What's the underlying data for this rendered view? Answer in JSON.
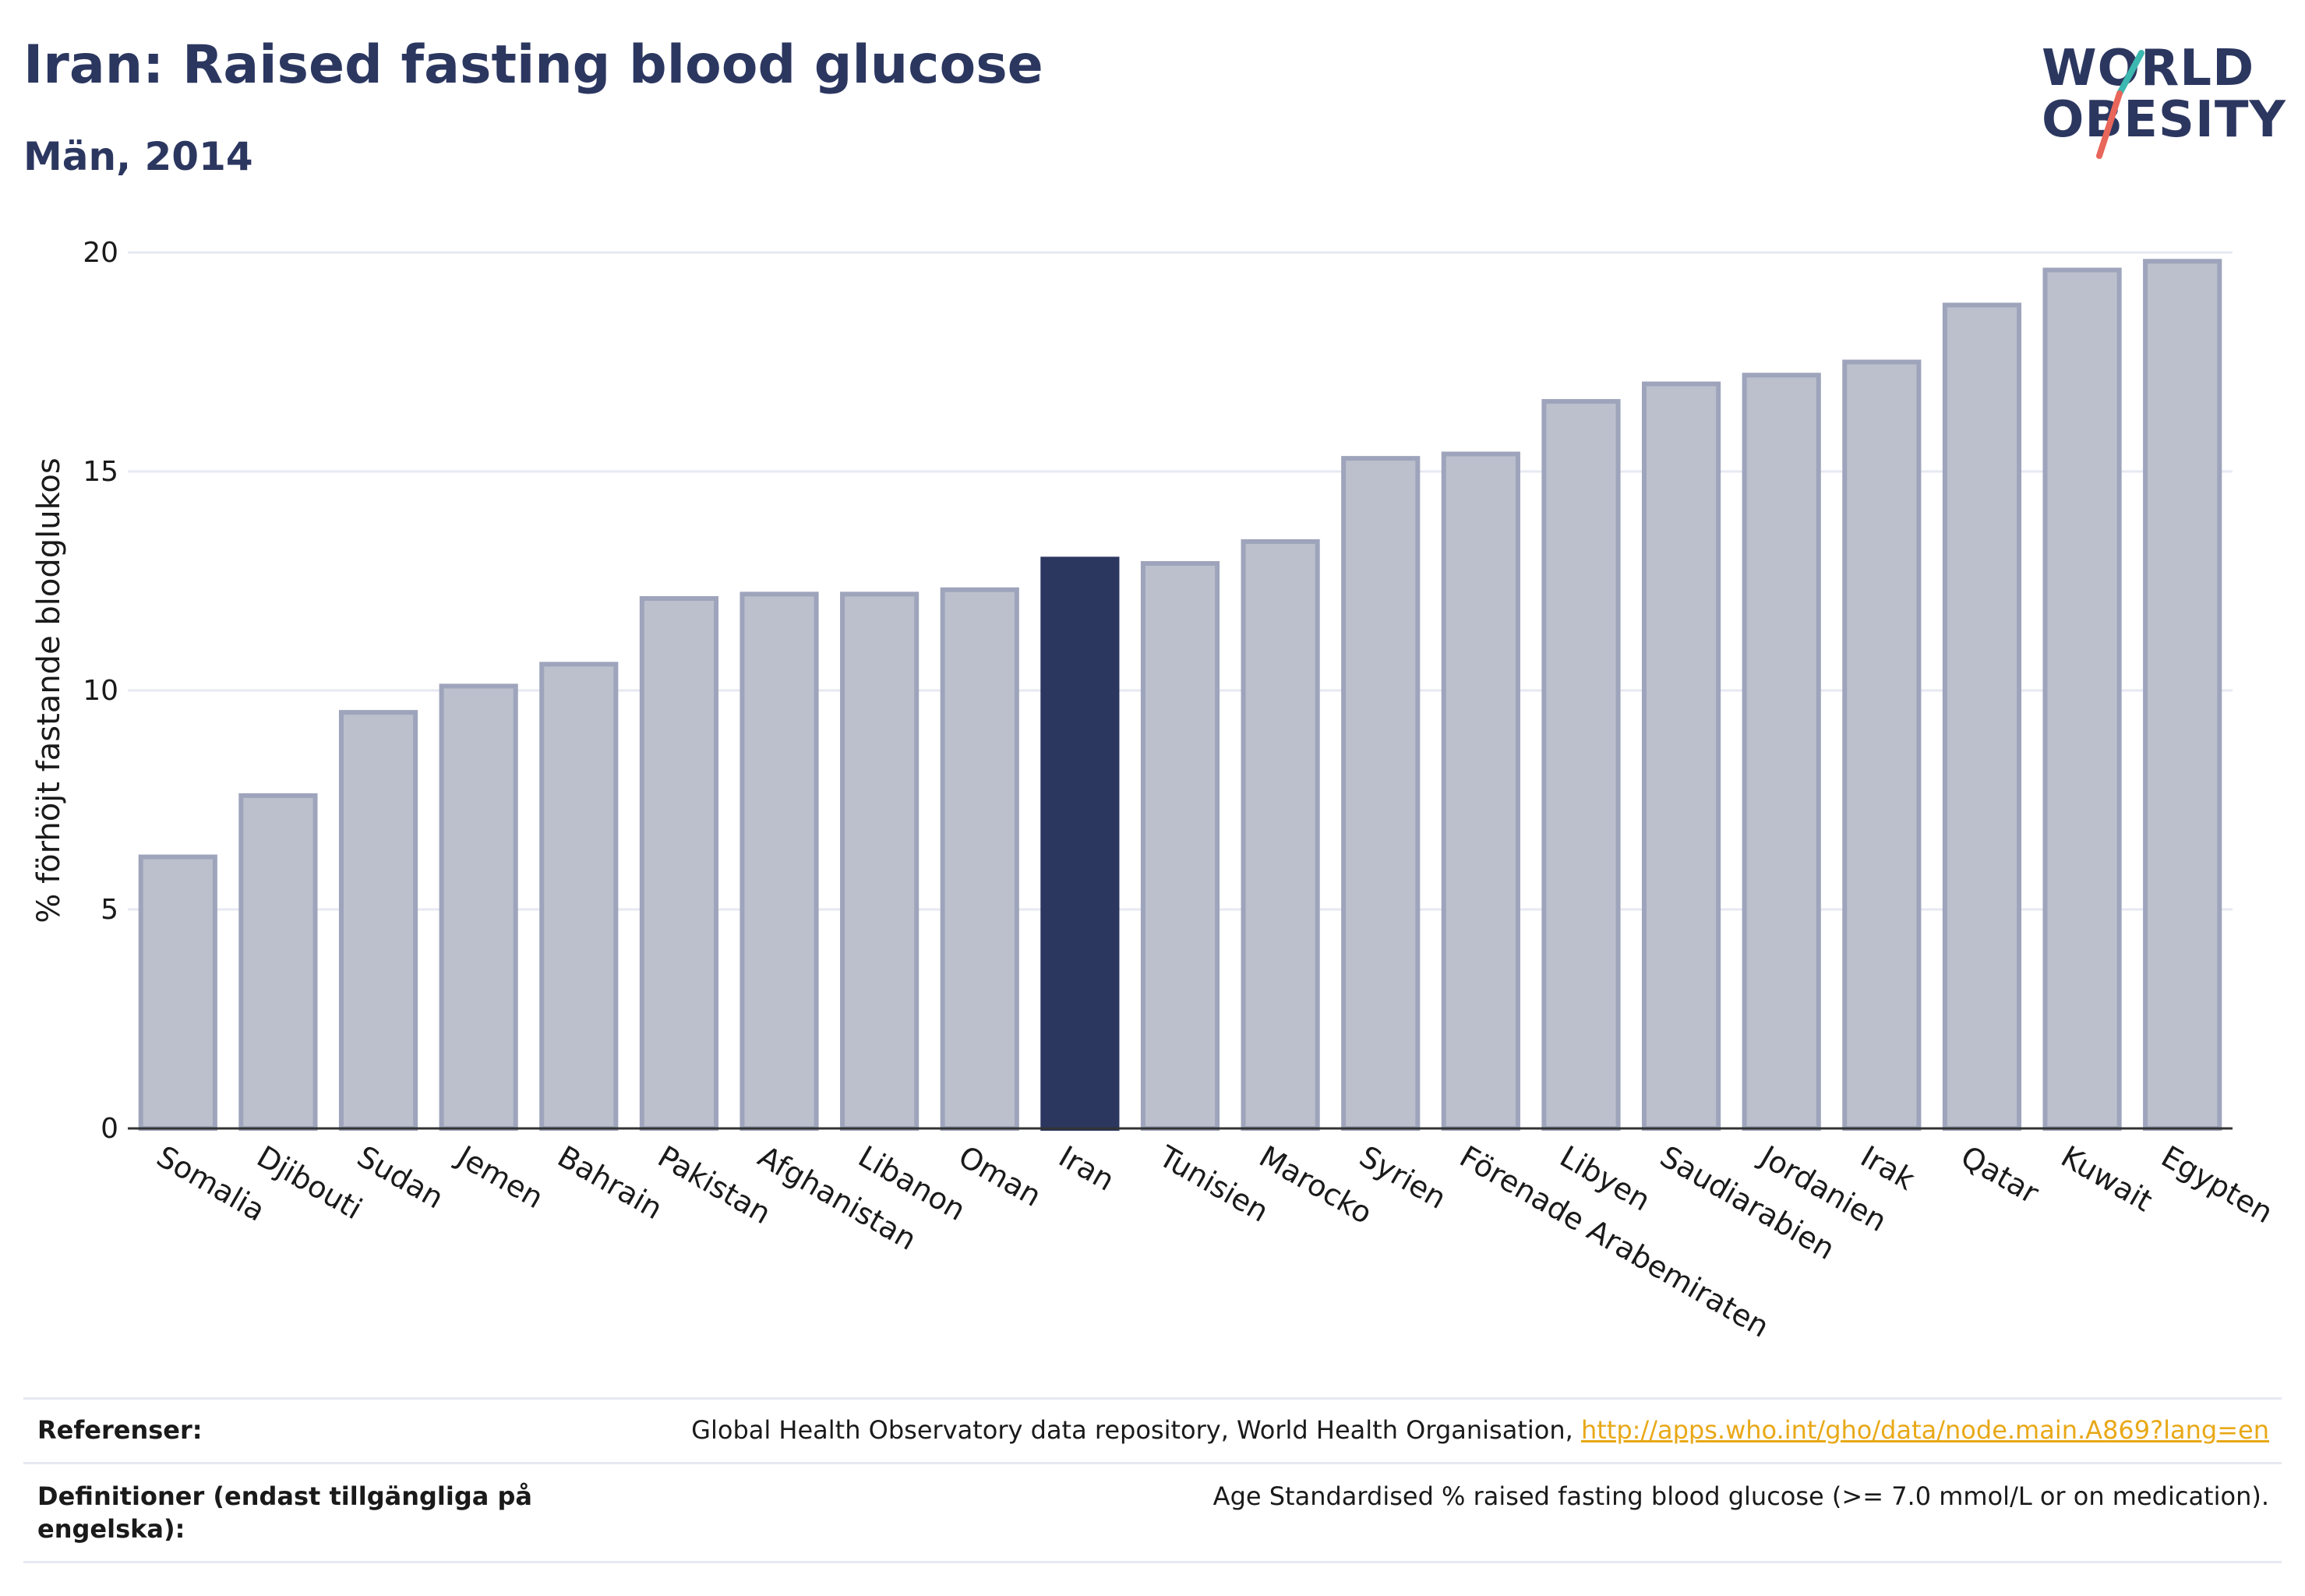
{
  "header": {
    "title": "Iran: Raised fasting blood glucose",
    "subtitle": "Män, 2014"
  },
  "logo": {
    "line1": "WORLD",
    "line2": "OBESITY",
    "text_color": "#2c3760",
    "slash_colors": [
      "#3cb8b0",
      "#e8665a"
    ]
  },
  "chart_data": {
    "type": "bar",
    "categories": [
      "Somalia",
      "Djibouti",
      "Sudan",
      "Jemen",
      "Bahrain",
      "Pakistan",
      "Afghanistan",
      "Libanon",
      "Oman",
      "Iran",
      "Tunisien",
      "Marocko",
      "Syrien",
      "Förenade Arabemiraten",
      "Libyen",
      "Saudiarabien",
      "Jordanien",
      "Irak",
      "Qatar",
      "Kuwait",
      "Egypten"
    ],
    "values": [
      6.2,
      7.6,
      9.5,
      10.1,
      10.6,
      12.1,
      12.2,
      12.2,
      12.3,
      13.0,
      12.9,
      13.4,
      15.3,
      15.4,
      16.6,
      17.0,
      17.2,
      17.5,
      18.8,
      19.6,
      19.8
    ],
    "highlight": "Iran",
    "ylabel": "% förhöjt fastande blodglukos",
    "xlabel": "",
    "ylim": [
      0,
      20
    ],
    "yticks": [
      0,
      5,
      10,
      15,
      20
    ],
    "grid": true,
    "colors": {
      "bar_fill": "#bcc0cd",
      "bar_stroke": "#9ea4bb",
      "highlight": "#2c3760",
      "grid": "#e6e9f2",
      "axis": "#333333"
    }
  },
  "references": {
    "sources_label": "Referenser:",
    "sources_text": "Global Health Observatory data repository, World Health Organisation, ",
    "sources_link": "http://apps.who.int/gho/data/node.main.A869?lang=en",
    "definitions_label": "Definitioner (endast tillgängliga på engelska):",
    "definitions_text": "Age Standardised % raised fasting blood glucose (>= 7.0 mmol/L or on medication)."
  }
}
